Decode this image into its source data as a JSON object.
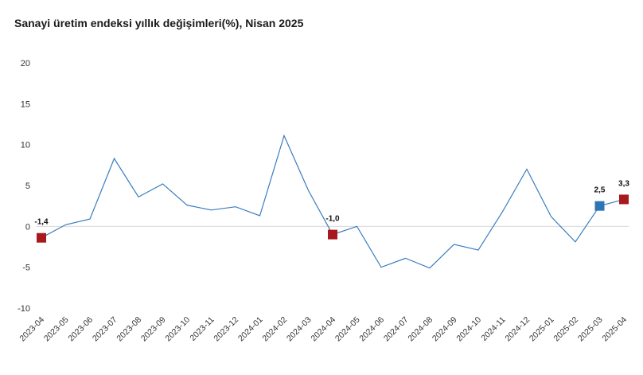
{
  "chart_data": {
    "type": "line",
    "title": "Sanayi üretim endeksi yıllık değişimleri(%), Nisan 2025",
    "xlabel": "",
    "ylabel": "",
    "ylim": [
      -10,
      20
    ],
    "yticks": [
      "20",
      "15",
      "10",
      "5",
      "0",
      "-5",
      "-10"
    ],
    "grid": false,
    "categories": [
      "2023-04",
      "2023-05",
      "2023-06",
      "2023-07",
      "2023-08",
      "2023-09",
      "2023-10",
      "2023-11",
      "2023-12",
      "2024-01",
      "2024-02",
      "2024-03",
      "2024-04",
      "2024-05",
      "2024-06",
      "2024-07",
      "2024-08",
      "2024-09",
      "2024-10",
      "2024-11",
      "2024-12",
      "2025-01",
      "2025-02",
      "2025-03",
      "2025-04"
    ],
    "series": [
      {
        "values": [
          -1.4,
          0.2,
          0.9,
          8.3,
          3.6,
          5.2,
          2.6,
          2.0,
          2.4,
          1.3,
          11.1,
          4.4,
          -1.0,
          0.0,
          -5.0,
          -3.9,
          -5.1,
          -2.2,
          -2.9,
          1.8,
          7.0,
          1.2,
          -1.9,
          2.5,
          3.3
        ],
        "color": "#3a7dbf"
      }
    ],
    "highlights": [
      {
        "index": 0,
        "label": "-1,4",
        "color": "#a8191e"
      },
      {
        "index": 12,
        "label": "-1,0",
        "color": "#a8191e"
      },
      {
        "index": 23,
        "label": "2,5",
        "color": "#2e75b6"
      },
      {
        "index": 24,
        "label": "3,3",
        "color": "#a8191e"
      }
    ]
  }
}
